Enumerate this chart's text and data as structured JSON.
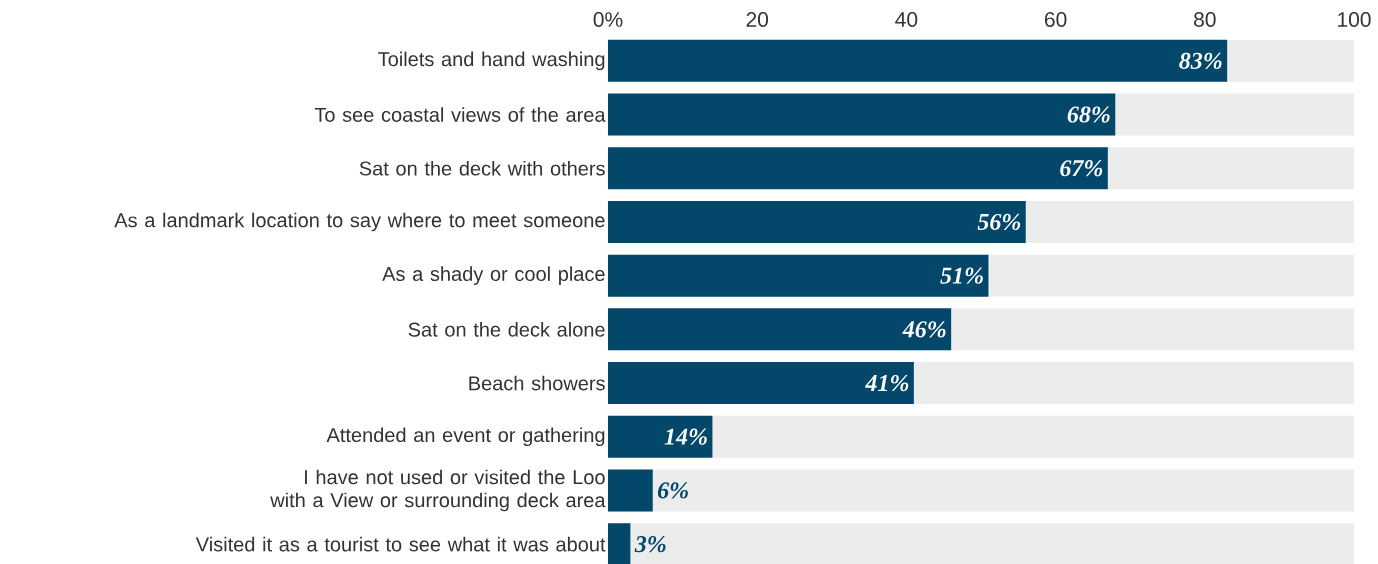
{
  "chart_data": {
    "type": "bar",
    "orientation": "horizontal",
    "categories": [
      "Toilets and hand washing",
      "To see coastal views of the area",
      "Sat on the deck with others",
      "As a landmark location to say where to meet someone",
      "As a shady or cool place",
      "Sat on the deck alone",
      "Beach showers",
      "Attended an event or gathering",
      "I have not used or visited the Loo with a View or surrounding deck area",
      "Visited it as a tourist to see what it was about"
    ],
    "series": [
      {
        "color": "#03476a",
        "values": [
          83,
          68,
          67,
          56,
          51,
          46,
          41,
          14,
          6,
          3
        ],
        "value_labels": [
          "83%",
          "68%",
          "67%",
          "56%",
          "51%",
          "46%",
          "41%",
          "14%",
          "6%",
          "3%"
        ]
      }
    ],
    "xlim": [
      0,
      100
    ],
    "xticks": [
      {
        "value": 0,
        "label": "0%"
      },
      20,
      40,
      60,
      80,
      100
    ],
    "grid": false
  }
}
